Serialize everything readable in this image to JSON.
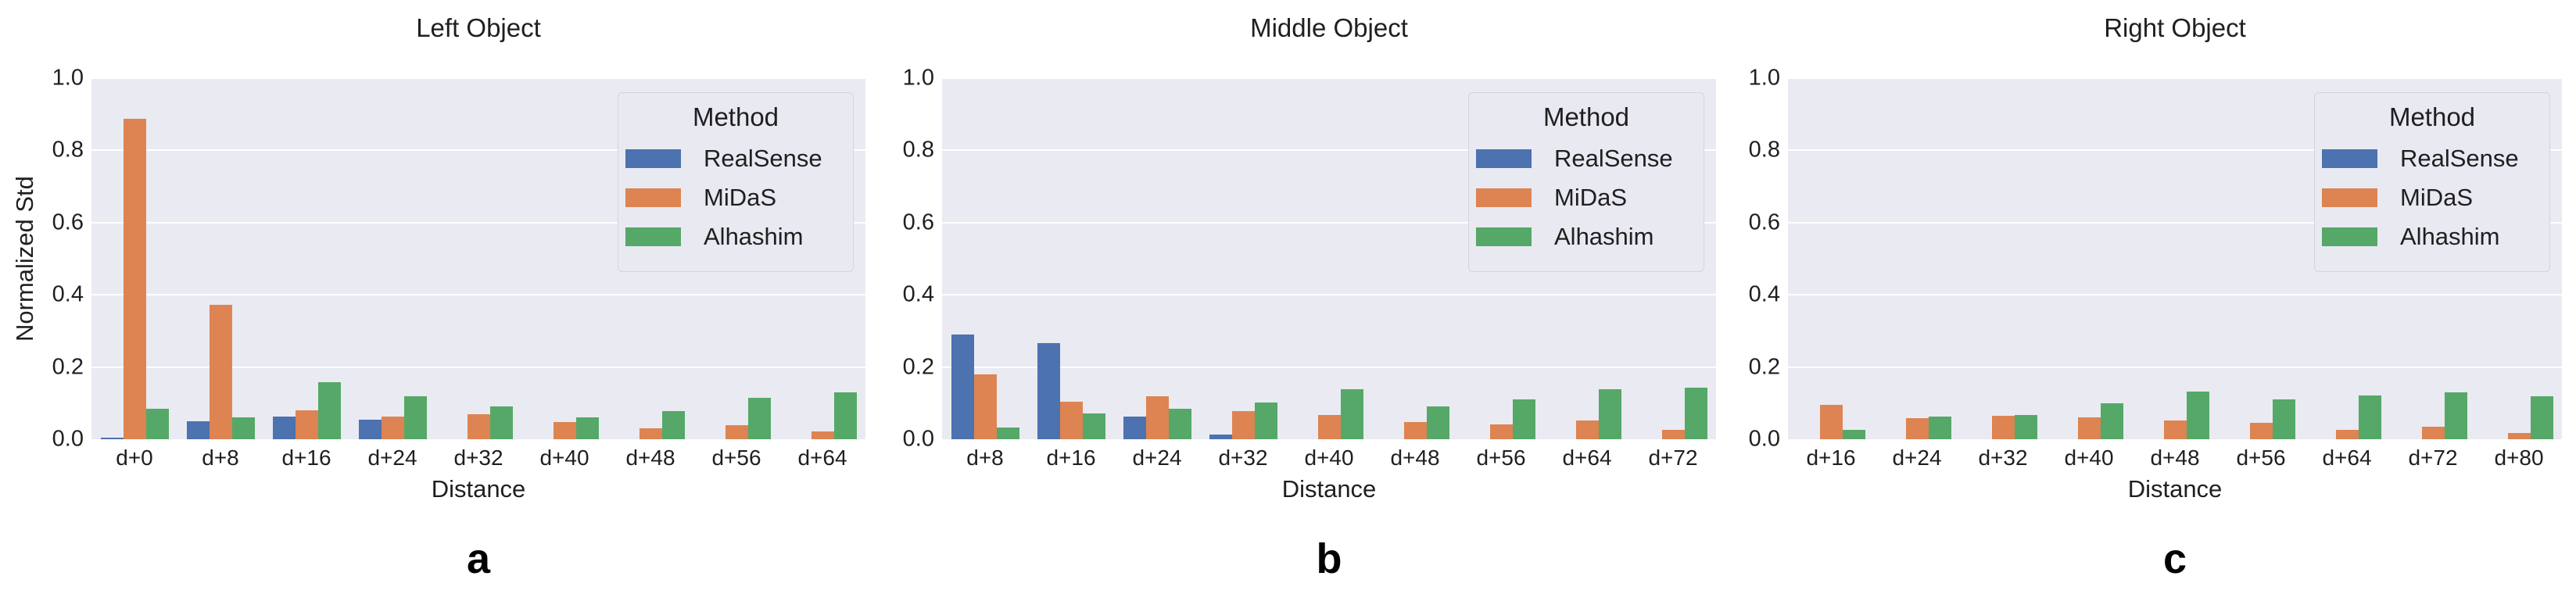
{
  "figure": {
    "background": "#ffffff",
    "plot_background": "#eaeaf2",
    "gridline_color": "#ffffff",
    "text_color": "#262626",
    "legend": {
      "title": "Method"
    }
  },
  "chart_data": [
    {
      "type": "bar",
      "title": "Left Object",
      "caption": "a",
      "xlabel": "Distance",
      "ylabel": "Normalized Std",
      "ylim": [
        0,
        1.0
      ],
      "yticks": [
        "0.0",
        "0.2",
        "0.4",
        "0.6",
        "0.8",
        "1.0"
      ],
      "grid": true,
      "legend_position": "upper right",
      "categories": [
        "d+0",
        "d+8",
        "d+16",
        "d+24",
        "d+32",
        "d+40",
        "d+48",
        "d+56",
        "d+64"
      ],
      "series": [
        {
          "name": "RealSense",
          "color": "#4c72b0",
          "values": [
            0.005,
            0.05,
            0.063,
            0.055,
            0,
            0,
            0,
            0,
            0
          ]
        },
        {
          "name": "MiDaS",
          "color": "#dd8452",
          "values": [
            0.887,
            0.373,
            0.08,
            0.062,
            0.07,
            0.048,
            0.03,
            0.04,
            0.022
          ]
        },
        {
          "name": "Alhashim",
          "color": "#55a868",
          "values": [
            0.084,
            0.06,
            0.157,
            0.12,
            0.09,
            0.06,
            0.078,
            0.114,
            0.13
          ]
        }
      ]
    },
    {
      "type": "bar",
      "title": "Middle Object",
      "caption": "b",
      "xlabel": "Distance",
      "ylabel": "",
      "ylim": [
        0,
        1.0
      ],
      "yticks": [
        "0.0",
        "0.2",
        "0.4",
        "0.6",
        "0.8",
        "1.0"
      ],
      "grid": true,
      "legend_position": "upper right",
      "categories": [
        "d+8",
        "d+16",
        "d+24",
        "d+32",
        "d+40",
        "d+48",
        "d+56",
        "d+64",
        "d+72"
      ],
      "series": [
        {
          "name": "RealSense",
          "color": "#4c72b0",
          "values": [
            0.29,
            0.266,
            0.062,
            0.013,
            0,
            0,
            0,
            0,
            0
          ]
        },
        {
          "name": "MiDaS",
          "color": "#dd8452",
          "values": [
            0.18,
            0.105,
            0.119,
            0.078,
            0.067,
            0.047,
            0.041,
            0.052,
            0.026
          ]
        },
        {
          "name": "Alhashim",
          "color": "#55a868",
          "values": [
            0.033,
            0.072,
            0.084,
            0.102,
            0.138,
            0.09,
            0.11,
            0.138,
            0.143
          ]
        }
      ]
    },
    {
      "type": "bar",
      "title": "Right Object",
      "caption": "c",
      "xlabel": "Distance",
      "ylabel": "",
      "ylim": [
        0,
        1.0
      ],
      "yticks": [
        "0.0",
        "0.2",
        "0.4",
        "0.6",
        "0.8",
        "1.0"
      ],
      "grid": true,
      "legend_position": "upper right",
      "categories": [
        "d+16",
        "d+24",
        "d+32",
        "d+40",
        "d+48",
        "d+56",
        "d+64",
        "d+72",
        "d+80"
      ],
      "series": [
        {
          "name": "RealSense",
          "color": "#4c72b0",
          "values": [
            0,
            0,
            0,
            0,
            0,
            0,
            0,
            0,
            0
          ]
        },
        {
          "name": "MiDaS",
          "color": "#dd8452",
          "values": [
            0.095,
            0.058,
            0.065,
            0.06,
            0.053,
            0.046,
            0.027,
            0.035,
            0.018
          ]
        },
        {
          "name": "Alhashim",
          "color": "#55a868",
          "values": [
            0.026,
            0.062,
            0.068,
            0.1,
            0.133,
            0.11,
            0.122,
            0.13,
            0.118
          ]
        }
      ]
    }
  ]
}
